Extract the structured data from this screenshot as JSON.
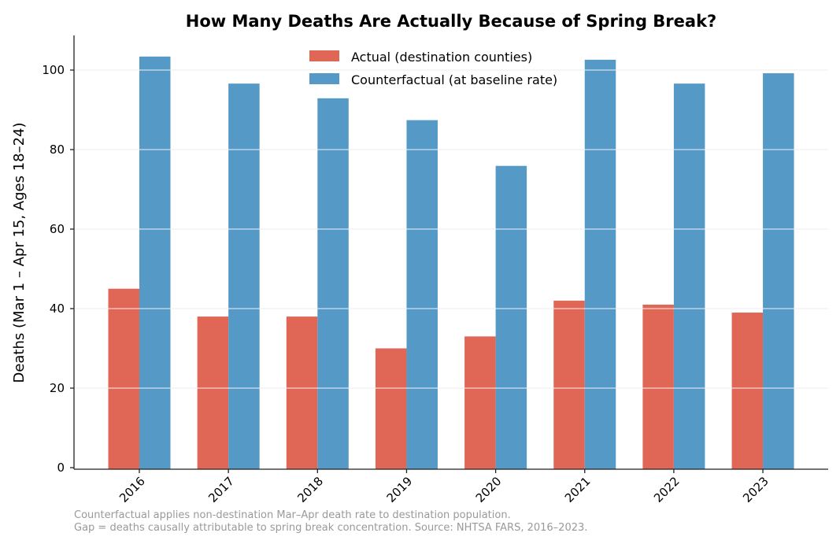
{
  "chart_data": {
    "type": "bar",
    "title": "How Many Deaths Are Actually Because of Spring Break?",
    "xlabel": "",
    "ylabel": "Deaths (Mar 1 – Apr 15, Ages 18–24)",
    "categories": [
      "2016",
      "2017",
      "2018",
      "2019",
      "2020",
      "2021",
      "2022",
      "2023"
    ],
    "series": [
      {
        "name": "Actual (destination counties)",
        "color": "#e06656",
        "values": [
          45,
          38,
          38,
          30,
          33,
          42,
          41,
          39
        ]
      },
      {
        "name": "Counterfactual (at baseline rate)",
        "color": "#5599c7",
        "values": [
          103.4,
          96.6,
          92.9,
          87.4,
          75.9,
          102.6,
          96.6,
          99.2
        ]
      }
    ],
    "yticks": [
      0,
      20,
      40,
      60,
      80,
      100
    ],
    "ylim": [
      0,
      108.7
    ],
    "grid": "horizontal",
    "legend": "top-center",
    "footnote": [
      "Counterfactual applies non-destination Mar–Apr death rate to destination population.",
      "Gap = deaths causally attributable to spring break concentration. Source: NHTSA FARS, 2016–2023."
    ]
  }
}
